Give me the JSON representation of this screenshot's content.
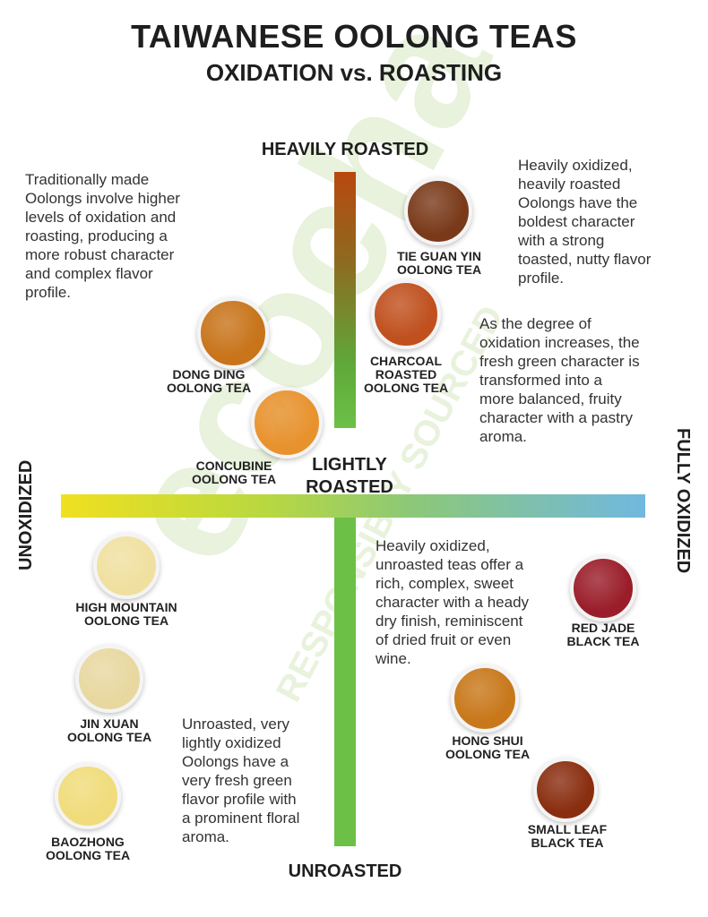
{
  "title": "TAIWANESE OOLONG TEAS",
  "subtitle": "OXIDATION vs. ROASTING",
  "axes": {
    "top": "HEAVILY ROASTED",
    "bottom": "UNROASTED",
    "center": "LIGHTLY\nROASTED",
    "left": "UNOXIDIZED",
    "right": "FULLY OXIDIZED"
  },
  "descriptions": {
    "top_left": "Traditionally made\nOolongs involve higher\nlevels of oxidation and\nroasting, producing a\nmore robust character\nand complex flavor\nprofile.",
    "top_right": "Heavily oxidized,\nheavily roasted\nOolongs have the\nboldest character\nwith a strong\ntoasted, nutty flavor\nprofile.",
    "middle_right": "As the degree of\noxidation increases, the\nfresh green character is\ntransformed into a\nmore balanced, fruity\ncharacter with a pastry\naroma.",
    "bottom_right": "Heavily oxidized,\nunroasted teas offer a\nrich, complex, sweet\ncharacter with a heady\ndry finish, reminiscent\nof dried fruit or even\nwine.",
    "bottom_left": "Unroasted, very\nlightly oxidized\nOolongs have a\nvery fresh green\nflavor profile with\na prominent floral\naroma."
  },
  "teas": [
    {
      "name": "TIE GUAN YIN\nOOLONG TEA",
      "color": "#7a3a1a"
    },
    {
      "name": "CHARCOAL\nROASTED\nOOLONG TEA",
      "color": "#c0501e"
    },
    {
      "name": "DONG DING\nOOLONG TEA",
      "color": "#c8741a"
    },
    {
      "name": "CONCUBINE\nOOLONG TEA",
      "color": "#e8922e"
    },
    {
      "name": "HIGH MOUNTAIN\nOOLONG TEA",
      "color": "#f0e0a0"
    },
    {
      "name": "JIN XUAN\nOOLONG TEA",
      "color": "#e8d8a0"
    },
    {
      "name": "BAOZHONG\nOOLONG TEA",
      "color": "#f0dc7a"
    },
    {
      "name": "RED JADE\nBLACK TEA",
      "color": "#9a1e2a"
    },
    {
      "name": "HONG SHUI\nOOLONG TEA",
      "color": "#c8781a"
    },
    {
      "name": "SMALL LEAF\nBLACK TEA",
      "color": "#8a2e10"
    }
  ],
  "watermark": [
    "ecocha",
    "RESPONSIBLY SOURCED"
  ]
}
